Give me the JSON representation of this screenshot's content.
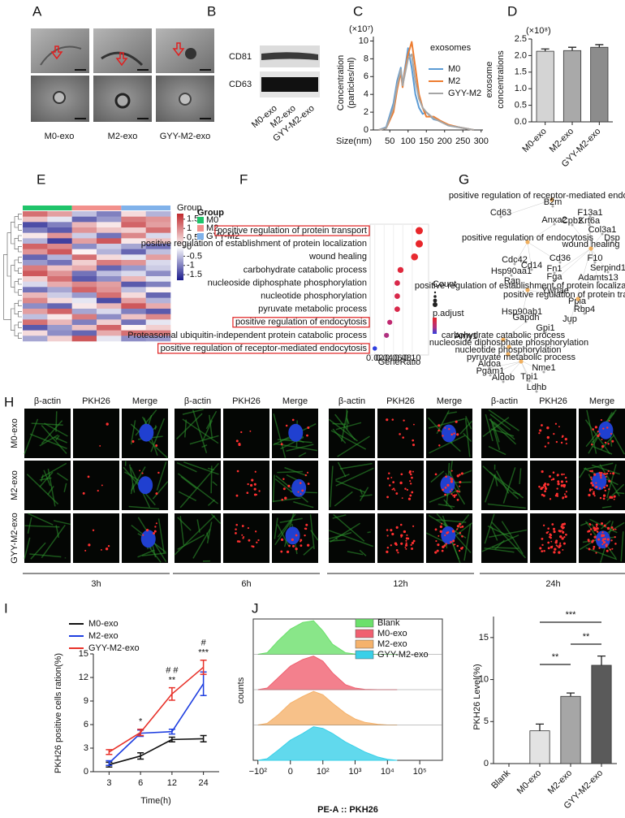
{
  "panel_letters": [
    "A",
    "B",
    "C",
    "D",
    "E",
    "F",
    "G",
    "H",
    "I",
    "J"
  ],
  "tem": {
    "labels": [
      "M0-exo",
      "M2-exo",
      "GYY-M2-exo"
    ]
  },
  "western_blot": {
    "bands": [
      "CD81",
      "CD63"
    ],
    "lanes": [
      "M0-exo",
      "M2-exo",
      "GYY-M2-exo"
    ]
  },
  "network": {
    "nodes": [
      "positive regulation of receptor-mediated endocytosis",
      "B2m",
      "Cd63",
      "Anxa2",
      "Cpb2",
      "F13a1",
      "Krt6a",
      "Col3a1",
      "Dsp",
      "positive regulation of endocytosis",
      "wound healing",
      "F10",
      "Serpind1",
      "Adamts13",
      "Cdc42",
      "Cd14",
      "Cd36",
      "Fn1",
      "Fga",
      "Hsp90aa1",
      "Ran",
      "positive regulation of establishment of protein localization",
      "Ywhae",
      "Ppia",
      "positive regulation of protein transport",
      "Rbp4",
      "Hsp90ab1",
      "Amy1",
      "Gapdh",
      "Jup",
      "Gpi1",
      "carbohydrate catabolic process",
      "nucleoside diphosphate phosphorylation",
      "nucleotide phosphorylation",
      "pyruvate metabolic process",
      "Aldoa",
      "Pgam1",
      "Aldob",
      "Tpi1",
      "Nme1",
      "Ldhb"
    ]
  },
  "uptake_images": {
    "stains": [
      "β-actin",
      "PKH26",
      "Merge"
    ],
    "groups": [
      "M0-exo",
      "M2-exo",
      "GYY-M2-exo"
    ],
    "times": [
      "3h",
      "6h",
      "12h",
      "24h"
    ]
  },
  "chart_data": [
    {
      "type": "line",
      "unit": "(×10⁷)",
      "ylabel": [
        "Concentration",
        "(particles/ml)"
      ],
      "xlabel": "Size(nm)",
      "annotation": "exosomes",
      "x": [
        20,
        40,
        60,
        70,
        80,
        85,
        90,
        100,
        110,
        120,
        130,
        140,
        150,
        170,
        190,
        210,
        240,
        280
      ],
      "xlim": [
        5,
        305
      ],
      "xticks": [
        50,
        100,
        150,
        200,
        250,
        300
      ],
      "ylim": [
        0,
        10.5
      ],
      "yticks": [
        0,
        2,
        4,
        6,
        8,
        10
      ],
      "series": [
        {
          "name": "M0",
          "color": "#5b9bd5",
          "values": [
            0,
            0.3,
            3,
            5.5,
            7.0,
            5.0,
            6.5,
            9.2,
            7,
            4,
            2.5,
            1.8,
            2,
            1.2,
            1.0,
            0.5,
            0.3,
            0
          ]
        },
        {
          "name": "M2",
          "color": "#ed7d31",
          "values": [
            0,
            0.2,
            2,
            4.5,
            6.5,
            4.8,
            6.3,
            8.5,
            9.9,
            7,
            4,
            2.5,
            1.5,
            1.5,
            1.0,
            0.6,
            0.3,
            0
          ]
        },
        {
          "name": "GYY-M2",
          "color": "#a5a5a5",
          "values": [
            0,
            0.2,
            2.5,
            5,
            6.8,
            5,
            6,
            8.0,
            8.5,
            5.5,
            3.5,
            2.5,
            2.0,
            1.3,
            0.9,
            0.5,
            0.3,
            0
          ]
        }
      ]
    },
    {
      "type": "bar",
      "unit": "(×10⁸)",
      "ylabel": [
        "exosome",
        "concentrations"
      ],
      "categories": [
        "M0-exo",
        "M2-exo",
        "GYY-M2-exo"
      ],
      "values": [
        2.13,
        2.15,
        2.25
      ],
      "errors": [
        0.07,
        0.1,
        0.08
      ],
      "colors": [
        "#d4d4d4",
        "#a9a9a9",
        "#8c8c8c"
      ],
      "ylim": [
        0,
        2.5
      ],
      "yticks": [
        {
          "value": 0,
          "label": "0.0"
        },
        0.5,
        {
          "value": 1,
          "label": "1.0"
        },
        1.5,
        {
          "value": 2,
          "label": "2.0"
        },
        2.5
      ]
    },
    {
      "type": "heatmap",
      "legend_title": "Group",
      "groups": [
        {
          "name": "M0",
          "color": "#1fc46a"
        },
        {
          "name": "M2",
          "color": "#f2908c"
        },
        {
          "name": "GYY-M2",
          "color": "#80b2ea"
        }
      ],
      "zlim": [
        -1.8,
        1.8
      ],
      "zticks": [
        1.5,
        1,
        0.5,
        0,
        -0.5,
        -1,
        -1.5
      ],
      "matrix": [
        [
          1.2,
          0.8,
          -0.5,
          -1.0,
          0.3,
          -0.6
        ],
        [
          0.5,
          -0.2,
          -1.2,
          -0.8,
          1.1,
          0.9
        ],
        [
          -1.4,
          -1.0,
          0.6,
          0.2,
          1.3,
          0.8
        ],
        [
          -1.0,
          -1.3,
          0.9,
          0.5,
          0.4,
          1.2
        ],
        [
          0.2,
          0.9,
          -0.4,
          -1.1,
          1.0,
          -0.3
        ],
        [
          -0.6,
          -1.5,
          0.8,
          1.4,
          0.2,
          0.5
        ],
        [
          1.3,
          1.0,
          -0.9,
          -0.4,
          -0.7,
          -1.1
        ],
        [
          0.9,
          1.4,
          0.1,
          -0.6,
          -1.2,
          -0.5
        ],
        [
          -1.2,
          -0.6,
          1.2,
          0.3,
          -0.2,
          0.8
        ],
        [
          -0.8,
          -1.1,
          0.4,
          1.1,
          0.9,
          -0.3
        ],
        [
          1.1,
          0.5,
          0.7,
          -1.2,
          -0.8,
          -0.4
        ],
        [
          1.4,
          0.9,
          -1.1,
          -0.5,
          -0.3,
          -0.9
        ],
        [
          0.4,
          1.2,
          -1.3,
          -0.9,
          0.6,
          -0.2
        ],
        [
          -0.3,
          0.7,
          1.0,
          0.8,
          -1.3,
          -1.0
        ],
        [
          -1.1,
          -0.7,
          1.3,
          0.9,
          -0.5,
          0.1
        ],
        [
          0.6,
          -0.4,
          -0.8,
          1.2,
          0.3,
          -1.2
        ],
        [
          1.0,
          0.3,
          -0.2,
          -1.4,
          0.8,
          -0.6
        ],
        [
          -0.9,
          -1.2,
          0.2,
          0.6,
          1.4,
          0.7
        ],
        [
          0.8,
          1.3,
          -0.7,
          -0.3,
          -1.0,
          -1.3
        ],
        [
          -0.5,
          0.2,
          1.1,
          -0.9,
          0.5,
          1.0
        ],
        [
          1.2,
          0.6,
          -1.0,
          0.4,
          -1.1,
          -0.2
        ],
        [
          -1.3,
          -0.8,
          0.5,
          1.3,
          0.1,
          0.4
        ],
        [
          0.3,
          -0.9,
          -1.2,
          0.7,
          1.2,
          1.1
        ],
        [
          -0.7,
          0.4,
          1.4,
          -0.2,
          -0.9,
          -0.8
        ]
      ]
    },
    {
      "type": "dot",
      "xlabel": "GeneRatio",
      "size_title": "Count",
      "color_title": "p.adjust",
      "categories": [
        "positive regulation of protein transport",
        "positive regulation of establishment of protein localization",
        "wound healing",
        "carbohydrate catabolic process",
        "nucleoside diphosphate phosphorylation",
        "nucleotide phosphorylation",
        "pyruvate metabolic process",
        "positive regulation of endocytosis",
        "Proteasomal ubiquitin-independent protein catabolic process",
        "positive regulation of receptor-mediated endocytosis"
      ],
      "values": [
        0.115,
        0.115,
        0.105,
        0.075,
        0.068,
        0.068,
        0.068,
        0.052,
        0.045,
        0.02
      ],
      "sizes": [
        9,
        9,
        8,
        5,
        4,
        4,
        4,
        3,
        3,
        2
      ],
      "colors": [
        "#e8262a",
        "#e8262a",
        "#e82a30",
        "#e0283c",
        "#d8284a",
        "#d8284a",
        "#d8284a",
        "#c02870",
        "#b03080",
        "#3040e0"
      ],
      "highlight": [
        0,
        7,
        9
      ],
      "xlim": [
        0.01,
        0.135
      ],
      "xticks": [
        0.02,
        0.04,
        0.06,
        0.08,
        {
          "value": 0.1,
          "label": "0.10"
        }
      ]
    },
    {
      "type": "line",
      "ylabel": "PKH26 positive cells ration(%)",
      "xlabel": "Time(h)",
      "categories": [
        "3",
        "6",
        "12",
        "24"
      ],
      "ylim": [
        0,
        15
      ],
      "yticks": [
        0,
        3,
        6,
        9,
        12,
        15
      ],
      "series": [
        {
          "name": "M0-exo",
          "color": "#111111",
          "values": [
            0.9,
            2.0,
            4.1,
            4.2
          ],
          "errors": [
            0.3,
            0.4,
            0.3,
            0.4
          ]
        },
        {
          "name": "M2-exo",
          "color": "#1f3fe0",
          "values": [
            1.1,
            4.9,
            5.1,
            11.2
          ],
          "errors": [
            0.3,
            0.4,
            0.3,
            1.5
          ]
        },
        {
          "name": "GYY-M2-exo",
          "color": "#e8322a",
          "values": [
            2.5,
            5.0,
            9.9,
            13.3
          ],
          "errors": [
            0.3,
            0.4,
            0.8,
            0.9
          ]
        }
      ],
      "annotations": [
        {
          "category": "6",
          "text": "*"
        },
        {
          "category": "12",
          "text": "**"
        },
        {
          "category": "12",
          "text": "# #"
        },
        {
          "category": "24",
          "text": "***"
        },
        {
          "category": "24",
          "text": "#"
        }
      ]
    },
    {
      "type": "area",
      "xlabel": "PE-A :: PKH26",
      "ylabel": "counts",
      "x": [
        -100,
        -50,
        -20,
        0,
        20,
        50,
        100,
        200,
        500,
        1000,
        2000,
        5000,
        10000,
        20000
      ],
      "xlim": [
        -140,
        500000
      ],
      "ylim": [
        0,
        100
      ],
      "xticks": [
        {
          "value": -100,
          "label": "−10²"
        },
        0,
        {
          "value": 100,
          "label": "10²"
        },
        {
          "value": 1000,
          "label": "10³"
        },
        {
          "value": 10000,
          "label": "10⁴"
        },
        {
          "value": 100000,
          "label": "10⁵"
        }
      ],
      "series": [
        {
          "name": "Blank",
          "color": "#6be06b",
          "values": [
            0,
            5,
            40,
            75,
            95,
            100,
            70,
            30,
            5,
            1,
            0,
            0,
            0,
            0
          ]
        },
        {
          "name": "M0-exo",
          "color": "#f06070",
          "values": [
            0,
            5,
            35,
            70,
            90,
            100,
            85,
            50,
            15,
            5,
            1,
            0,
            0,
            0
          ]
        },
        {
          "name": "M2-exo",
          "color": "#f5b26b",
          "values": [
            0,
            5,
            30,
            65,
            85,
            100,
            90,
            65,
            35,
            18,
            8,
            2,
            0,
            0
          ]
        },
        {
          "name": "GYY-M2-exo",
          "color": "#3ad0e8",
          "values": [
            0,
            5,
            30,
            60,
            80,
            100,
            95,
            80,
            55,
            40,
            25,
            10,
            3,
            0
          ]
        }
      ]
    },
    {
      "type": "bar",
      "ylabel": "PKH26 Level(%)",
      "categories": [
        "Blank",
        "M0-exo",
        "M2-exo",
        "GYY-M2-exo"
      ],
      "values": [
        0,
        3.9,
        8.0,
        11.7
      ],
      "errors": [
        0,
        0.8,
        0.4,
        1.1
      ],
      "colors": [
        "#ffffff",
        "#e3e3e3",
        "#a6a6a6",
        "#5a5a5a"
      ],
      "ylim": [
        0,
        17.5
      ],
      "yticks": [
        0,
        5,
        10,
        15
      ],
      "brackets": [
        {
          "from": "M0-exo",
          "to": "M2-exo",
          "text": "**"
        },
        {
          "from": "M2-exo",
          "to": "GYY-M2-exo",
          "text": "**"
        },
        {
          "from": "M0-exo",
          "to": "GYY-M2-exo",
          "text": "***"
        }
      ]
    }
  ]
}
